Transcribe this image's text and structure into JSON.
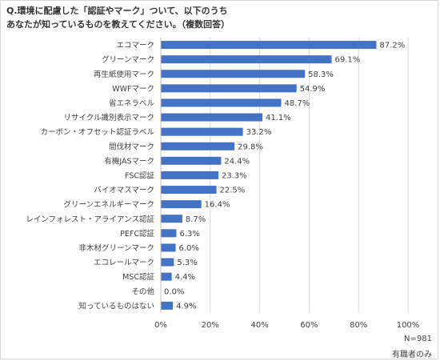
{
  "question": {
    "line1": "Q.環境に配慮した「認証やマーク」ついて、以下のうち",
    "line2": "あなたが知っているものを教えてください。（複数回答）"
  },
  "chart_data": {
    "type": "bar",
    "orientation": "horizontal",
    "categories": [
      "エコマーク",
      "グリーンマーク",
      "再生紙使用マーク",
      "WWFマーク",
      "省エネラベル",
      "リサイクル識別表示マーク",
      "カーボン・オフセット認証ラベル",
      "間伐材マーク",
      "有機JASマーク",
      "FSC認証",
      "バイオマスマーク",
      "グリーンエネルギーマーク",
      "レインフォレスト・アライアンス認証",
      "PEFC認証",
      "非木材グリーンマーク",
      "エコレールマーク",
      "MSC認証",
      "その他",
      "知っているものはない"
    ],
    "values": [
      87.2,
      69.1,
      58.3,
      54.9,
      48.7,
      41.1,
      33.2,
      29.8,
      24.4,
      23.3,
      22.5,
      16.4,
      8.7,
      6.3,
      6.0,
      5.3,
      4.4,
      0.0,
      4.9
    ],
    "value_labels": [
      "87.2%",
      "69.1%",
      "58.3%",
      "54.9%",
      "48.7%",
      "41.1%",
      "33.2%",
      "29.8%",
      "24.4%",
      "23.3%",
      "22.5%",
      "16.4%",
      "8.7%",
      "6.3%",
      "6.0%",
      "5.3%",
      "4.4%",
      "0.0%",
      "4.9%"
    ],
    "xlim": [
      0,
      100
    ],
    "xticks": [
      0,
      20,
      40,
      60,
      80,
      100
    ],
    "xtick_labels": [
      "0%",
      "20%",
      "40%",
      "60%",
      "80%",
      "100%"
    ],
    "grid": true,
    "bar_color": "#4472c4"
  },
  "notes": {
    "sample": "N=981",
    "scope": "有職者のみ"
  }
}
